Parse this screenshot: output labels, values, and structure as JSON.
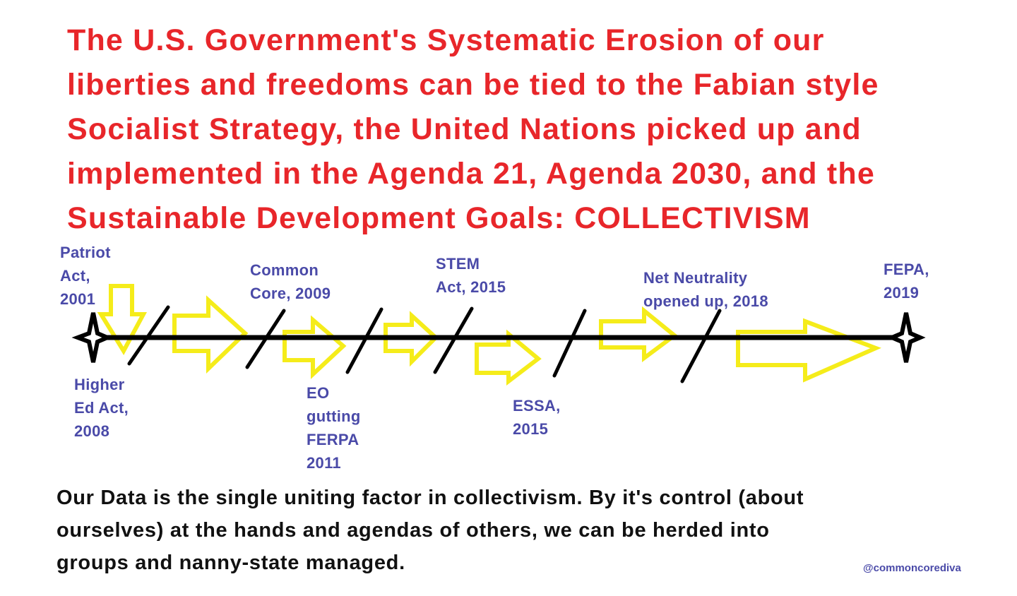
{
  "title": {
    "lines": [
      "The U.S. Government's Systematic Erosion of our",
      "liberties and freedoms can be tied to the Fabian style",
      "Socialist Strategy, the United Nations picked up and",
      "implemented in the Agenda 21, Agenda 2030, and the",
      "Sustainable Development Goals: COLLECTIVISM"
    ],
    "color": "#e8262a"
  },
  "timeline": {
    "label_color": "#4a4aa8",
    "arrow_color": "#f5ec1a",
    "line_color": "#000000",
    "events_above": [
      {
        "lines": [
          "Patriot",
          "Act,",
          "2001"
        ]
      },
      {
        "lines": [
          "Common",
          "Core, 2009"
        ]
      },
      {
        "lines": [
          "STEM",
          "Act, 2015"
        ]
      },
      {
        "lines": [
          "Net Neutrality",
          "opened up, 2018"
        ]
      },
      {
        "lines": [
          "FEPA,",
          "2019"
        ]
      }
    ],
    "events_below": [
      {
        "lines": [
          "Higher",
          "Ed Act,",
          "2008"
        ]
      },
      {
        "lines": [
          "EO",
          "gutting",
          "FERPA",
          "2011"
        ]
      },
      {
        "lines": [
          "ESSA,",
          "2015"
        ]
      }
    ]
  },
  "body": {
    "lines": [
      "Our Data is the single uniting factor in collectivism. By it's control (about",
      "ourselves) at the hands and agendas of others, we can be herded into",
      "groups and nanny-state managed."
    ]
  },
  "watermark": "@commoncorediva"
}
